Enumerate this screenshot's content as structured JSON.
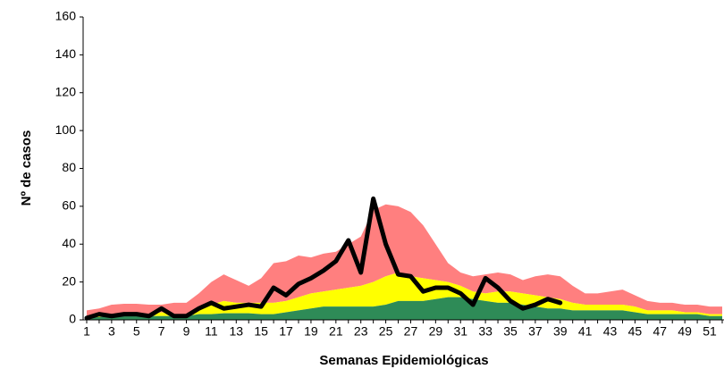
{
  "chart_data": {
    "type": "area",
    "xlabel": "Semanas Epidemiológicas",
    "ylabel": "Nº de casos",
    "categories": [
      1,
      null,
      3,
      null,
      5,
      null,
      7,
      null,
      9,
      null,
      11,
      null,
      13,
      null,
      15,
      null,
      17,
      null,
      19,
      null,
      21,
      null,
      23,
      null,
      25,
      null,
      27,
      null,
      29,
      null,
      31,
      null,
      33,
      null,
      35,
      null,
      37,
      null,
      39,
      null,
      41,
      null,
      43,
      null,
      45,
      null,
      47,
      null,
      49,
      null,
      51,
      null
    ],
    "stacked": true,
    "series": [
      {
        "type": "area",
        "color": "#2e8b57",
        "values": [
          1,
          1.5,
          2,
          2,
          2,
          2,
          2,
          2,
          2,
          3,
          3,
          3.5,
          3.5,
          3.5,
          3,
          3,
          4,
          5,
          6,
          7,
          7,
          7,
          7,
          7,
          8,
          10,
          10,
          10,
          11,
          12,
          12,
          11,
          10,
          9,
          9,
          8,
          7,
          6,
          6,
          5,
          5,
          5,
          5,
          5,
          4,
          3,
          3,
          3,
          3,
          3,
          2,
          2
        ]
      },
      {
        "type": "area",
        "color": "#ffff00",
        "values": [
          1,
          1.5,
          1,
          1,
          1,
          1,
          2,
          1,
          1,
          2,
          5,
          6.5,
          5.5,
          5.5,
          6,
          6,
          6,
          7,
          8,
          8,
          9,
          10,
          11,
          13,
          15,
          15,
          13,
          12,
          10,
          8,
          6,
          4,
          4,
          6,
          6,
          6,
          6,
          6,
          5,
          4,
          3,
          3,
          3,
          3,
          3,
          2,
          2,
          2,
          1,
          1,
          1,
          1
        ]
      },
      {
        "type": "area",
        "color": "#ff7f7f",
        "values": [
          3,
          3,
          5,
          5.5,
          5.5,
          5,
          4,
          6,
          6,
          9,
          12,
          14,
          12,
          9,
          13,
          21,
          21,
          22,
          19,
          20,
          20,
          23,
          26,
          38,
          38,
          35,
          34,
          28,
          19,
          10,
          7,
          8,
          10,
          10,
          9,
          7,
          10,
          12,
          12,
          9,
          6,
          6,
          7,
          8,
          6,
          5,
          4,
          4,
          4,
          4,
          4,
          4
        ]
      },
      {
        "type": "line",
        "color": "#000000",
        "values": [
          1,
          3,
          2,
          3,
          3,
          2,
          6,
          2,
          2,
          6,
          9,
          6,
          7,
          8,
          7,
          17,
          13,
          19,
          22,
          26,
          31,
          42,
          25,
          64,
          40,
          24,
          23,
          15,
          17,
          17,
          14,
          8,
          22,
          17,
          10,
          6,
          8,
          11,
          9,
          null,
          null,
          null,
          null,
          null,
          null,
          null,
          null,
          null,
          null,
          null,
          null,
          null
        ]
      }
    ],
    "ylim": [
      0,
      160
    ],
    "yticks": [
      0,
      20,
      40,
      60,
      80,
      100,
      120,
      140,
      160
    ],
    "grid": false
  }
}
